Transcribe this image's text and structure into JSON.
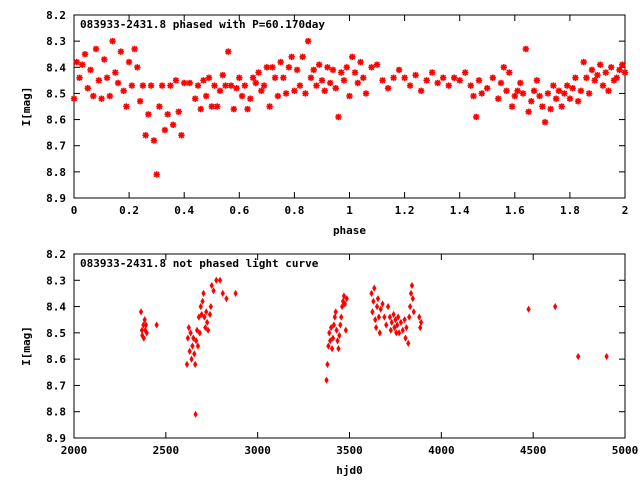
{
  "chart_data": [
    {
      "type": "scatter",
      "title": "083933-2431.8 phased with P=60.170day",
      "xlabel": "phase",
      "ylabel": "I[mag]",
      "xlim": [
        0,
        2
      ],
      "ylim": [
        8.2,
        8.9
      ],
      "y_inverted": true,
      "grid": false,
      "color": "#ff0000",
      "marker": "asterisk",
      "xticks": [
        0,
        0.2,
        0.4,
        0.6,
        0.8,
        1,
        1.2,
        1.4,
        1.6,
        1.8,
        2
      ],
      "xtick_labels": [
        "0",
        "0.2",
        "0.4",
        "0.6",
        "0.8",
        "1",
        "1.2",
        "1.4",
        "1.6",
        "1.8",
        "2"
      ],
      "yticks": [
        8.2,
        8.3,
        8.4,
        8.5,
        8.6,
        8.7,
        8.8,
        8.9
      ],
      "ytick_labels": [
        "8.2",
        "8.3",
        "8.4",
        "8.5",
        "8.6",
        "8.7",
        "8.8",
        "8.9"
      ],
      "points": [
        [
          0.0,
          8.52
        ],
        [
          0.01,
          8.38
        ],
        [
          0.02,
          8.44
        ],
        [
          0.03,
          8.39
        ],
        [
          0.04,
          8.35
        ],
        [
          0.05,
          8.48
        ],
        [
          0.06,
          8.41
        ],
        [
          0.07,
          8.51
        ],
        [
          0.08,
          8.33
        ],
        [
          0.09,
          8.45
        ],
        [
          0.1,
          8.52
        ],
        [
          0.11,
          8.37
        ],
        [
          0.12,
          8.44
        ],
        [
          0.13,
          8.51
        ],
        [
          0.14,
          8.3
        ],
        [
          0.15,
          8.42
        ],
        [
          0.16,
          8.46
        ],
        [
          0.17,
          8.34
        ],
        [
          0.18,
          8.49
        ],
        [
          0.19,
          8.55
        ],
        [
          0.2,
          8.38
        ],
        [
          0.21,
          8.47
        ],
        [
          0.22,
          8.33
        ],
        [
          0.23,
          8.4
        ],
        [
          0.24,
          8.53
        ],
        [
          0.25,
          8.47
        ],
        [
          0.26,
          8.66
        ],
        [
          0.27,
          8.58
        ],
        [
          0.28,
          8.47
        ],
        [
          0.29,
          8.68
        ],
        [
          0.3,
          8.81
        ],
        [
          0.31,
          8.55
        ],
        [
          0.32,
          8.47
        ],
        [
          0.33,
          8.64
        ],
        [
          0.34,
          8.58
        ],
        [
          0.35,
          8.47
        ],
        [
          0.36,
          8.62
        ],
        [
          0.37,
          8.45
        ],
        [
          0.38,
          8.57
        ],
        [
          0.39,
          8.66
        ],
        [
          0.4,
          8.46
        ],
        [
          0.42,
          8.46
        ],
        [
          0.44,
          8.52
        ],
        [
          0.45,
          8.47
        ],
        [
          0.46,
          8.56
        ],
        [
          0.47,
          8.45
        ],
        [
          0.48,
          8.51
        ],
        [
          0.49,
          8.44
        ],
        [
          0.5,
          8.55
        ],
        [
          0.51,
          8.47
        ],
        [
          0.52,
          8.55
        ],
        [
          0.53,
          8.49
        ],
        [
          0.54,
          8.43
        ],
        [
          0.55,
          8.47
        ],
        [
          0.56,
          8.34
        ],
        [
          0.57,
          8.47
        ],
        [
          0.58,
          8.56
        ],
        [
          0.59,
          8.48
        ],
        [
          0.6,
          8.44
        ],
        [
          0.61,
          8.51
        ],
        [
          0.62,
          8.47
        ],
        [
          0.63,
          8.56
        ],
        [
          0.64,
          8.52
        ],
        [
          0.65,
          8.44
        ],
        [
          0.66,
          8.46
        ],
        [
          0.67,
          8.42
        ],
        [
          0.68,
          8.49
        ],
        [
          0.69,
          8.47
        ],
        [
          0.7,
          8.4
        ],
        [
          0.71,
          8.55
        ],
        [
          0.72,
          8.4
        ],
        [
          0.73,
          8.44
        ],
        [
          0.74,
          8.51
        ],
        [
          0.75,
          8.38
        ],
        [
          0.76,
          8.44
        ],
        [
          0.77,
          8.5
        ],
        [
          0.78,
          8.4
        ],
        [
          0.79,
          8.36
        ],
        [
          0.8,
          8.49
        ],
        [
          0.81,
          8.41
        ],
        [
          0.82,
          8.47
        ],
        [
          0.83,
          8.36
        ],
        [
          0.84,
          8.5
        ],
        [
          0.85,
          8.3
        ],
        [
          0.86,
          8.44
        ],
        [
          0.87,
          8.41
        ],
        [
          0.88,
          8.47
        ],
        [
          0.89,
          8.39
        ],
        [
          0.9,
          8.45
        ],
        [
          0.91,
          8.49
        ],
        [
          0.92,
          8.4
        ],
        [
          0.93,
          8.46
        ],
        [
          0.94,
          8.41
        ],
        [
          0.95,
          8.48
        ],
        [
          0.96,
          8.59
        ],
        [
          0.97,
          8.42
        ],
        [
          0.98,
          8.45
        ],
        [
          0.99,
          8.4
        ],
        [
          1.0,
          8.51
        ],
        [
          1.01,
          8.36
        ],
        [
          1.02,
          8.42
        ],
        [
          1.03,
          8.46
        ],
        [
          1.04,
          8.38
        ],
        [
          1.05,
          8.44
        ],
        [
          1.06,
          8.5
        ],
        [
          1.08,
          8.4
        ],
        [
          1.1,
          8.39
        ],
        [
          1.12,
          8.45
        ],
        [
          1.14,
          8.48
        ],
        [
          1.16,
          8.44
        ],
        [
          1.18,
          8.41
        ],
        [
          1.2,
          8.44
        ],
        [
          1.22,
          8.47
        ],
        [
          1.24,
          8.43
        ],
        [
          1.26,
          8.49
        ],
        [
          1.28,
          8.45
        ],
        [
          1.3,
          8.42
        ],
        [
          1.32,
          8.46
        ],
        [
          1.34,
          8.44
        ],
        [
          1.36,
          8.47
        ],
        [
          1.38,
          8.44
        ],
        [
          1.4,
          8.45
        ],
        [
          1.42,
          8.42
        ],
        [
          1.44,
          8.47
        ],
        [
          1.45,
          8.51
        ],
        [
          1.46,
          8.59
        ],
        [
          1.47,
          8.45
        ],
        [
          1.48,
          8.5
        ],
        [
          1.5,
          8.48
        ],
        [
          1.52,
          8.44
        ],
        [
          1.54,
          8.52
        ],
        [
          1.55,
          8.46
        ],
        [
          1.56,
          8.4
        ],
        [
          1.57,
          8.49
        ],
        [
          1.58,
          8.42
        ],
        [
          1.59,
          8.55
        ],
        [
          1.6,
          8.51
        ],
        [
          1.61,
          8.49
        ],
        [
          1.62,
          8.46
        ],
        [
          1.63,
          8.5
        ],
        [
          1.64,
          8.33
        ],
        [
          1.65,
          8.57
        ],
        [
          1.66,
          8.53
        ],
        [
          1.67,
          8.49
        ],
        [
          1.68,
          8.45
        ],
        [
          1.69,
          8.51
        ],
        [
          1.7,
          8.55
        ],
        [
          1.71,
          8.61
        ],
        [
          1.72,
          8.5
        ],
        [
          1.73,
          8.56
        ],
        [
          1.74,
          8.47
        ],
        [
          1.75,
          8.52
        ],
        [
          1.76,
          8.49
        ],
        [
          1.77,
          8.55
        ],
        [
          1.78,
          8.5
        ],
        [
          1.79,
          8.47
        ],
        [
          1.8,
          8.52
        ],
        [
          1.81,
          8.48
        ],
        [
          1.82,
          8.44
        ],
        [
          1.83,
          8.53
        ],
        [
          1.84,
          8.49
        ],
        [
          1.85,
          8.38
        ],
        [
          1.86,
          8.44
        ],
        [
          1.87,
          8.5
        ],
        [
          1.88,
          8.41
        ],
        [
          1.89,
          8.45
        ],
        [
          1.9,
          8.43
        ],
        [
          1.91,
          8.39
        ],
        [
          1.92,
          8.47
        ],
        [
          1.93,
          8.42
        ],
        [
          1.94,
          8.49
        ],
        [
          1.95,
          8.4
        ],
        [
          1.96,
          8.45
        ],
        [
          1.97,
          8.44
        ],
        [
          1.98,
          8.41
        ],
        [
          1.99,
          8.39
        ],
        [
          2.0,
          8.42
        ]
      ]
    },
    {
      "type": "scatter",
      "title": "083933-2431.8 not phased light curve",
      "xlabel": "hjd0",
      "ylabel": "I[mag]",
      "xlim": [
        2000,
        5000
      ],
      "ylim": [
        8.2,
        8.9
      ],
      "y_inverted": true,
      "grid": false,
      "color": "#ff0000",
      "marker": "diamond",
      "xticks": [
        2000,
        2500,
        3000,
        3500,
        4000,
        4500,
        5000
      ],
      "xtick_labels": [
        "2000",
        "2500",
        "3000",
        "3500",
        "4000",
        "4500",
        "5000"
      ],
      "yticks": [
        8.2,
        8.3,
        8.4,
        8.5,
        8.6,
        8.7,
        8.8,
        8.9
      ],
      "ytick_labels": [
        "8.2",
        "8.3",
        "8.4",
        "8.5",
        "8.6",
        "8.7",
        "8.8",
        "8.9"
      ],
      "points": [
        [
          2365,
          8.42
        ],
        [
          2370,
          8.49
        ],
        [
          2372,
          8.51
        ],
        [
          2378,
          8.47
        ],
        [
          2380,
          8.52
        ],
        [
          2385,
          8.45
        ],
        [
          2388,
          8.49
        ],
        [
          2392,
          8.47
        ],
        [
          2396,
          8.5
        ],
        [
          2450,
          8.47
        ],
        [
          2615,
          8.62
        ],
        [
          2620,
          8.52
        ],
        [
          2625,
          8.48
        ],
        [
          2630,
          8.57
        ],
        [
          2635,
          8.5
        ],
        [
          2640,
          8.6
        ],
        [
          2645,
          8.55
        ],
        [
          2650,
          8.52
        ],
        [
          2655,
          8.58
        ],
        [
          2660,
          8.62
        ],
        [
          2662,
          8.81
        ],
        [
          2665,
          8.53
        ],
        [
          2670,
          8.49
        ],
        [
          2675,
          8.55
        ],
        [
          2680,
          8.44
        ],
        [
          2685,
          8.5
        ],
        [
          2690,
          8.4
        ],
        [
          2695,
          8.43
        ],
        [
          2700,
          8.38
        ],
        [
          2705,
          8.35
        ],
        [
          2710,
          8.44
        ],
        [
          2715,
          8.48
        ],
        [
          2720,
          8.42
        ],
        [
          2725,
          8.46
        ],
        [
          2730,
          8.49
        ],
        [
          2740,
          8.43
        ],
        [
          2745,
          8.4
        ],
        [
          2750,
          8.32
        ],
        [
          2760,
          8.34
        ],
        [
          2775,
          8.3
        ],
        [
          2795,
          8.3
        ],
        [
          2810,
          8.35
        ],
        [
          2830,
          8.37
        ],
        [
          2880,
          8.35
        ],
        [
          3375,
          8.68
        ],
        [
          3380,
          8.62
        ],
        [
          3385,
          8.55
        ],
        [
          3390,
          8.5
        ],
        [
          3395,
          8.53
        ],
        [
          3400,
          8.48
        ],
        [
          3405,
          8.56
        ],
        [
          3410,
          8.52
        ],
        [
          3415,
          8.47
        ],
        [
          3420,
          8.44
        ],
        [
          3425,
          8.42
        ],
        [
          3430,
          8.49
        ],
        [
          3435,
          8.53
        ],
        [
          3440,
          8.56
        ],
        [
          3445,
          8.51
        ],
        [
          3450,
          8.47
        ],
        [
          3455,
          8.44
        ],
        [
          3460,
          8.4
        ],
        [
          3465,
          8.38
        ],
        [
          3470,
          8.36
        ],
        [
          3475,
          8.39
        ],
        [
          3480,
          8.49
        ],
        [
          3485,
          8.37
        ],
        [
          3620,
          8.35
        ],
        [
          3625,
          8.42
        ],
        [
          3630,
          8.38
        ],
        [
          3635,
          8.33
        ],
        [
          3640,
          8.45
        ],
        [
          3645,
          8.48
        ],
        [
          3650,
          8.4
        ],
        [
          3655,
          8.37
        ],
        [
          3660,
          8.44
        ],
        [
          3665,
          8.5
        ],
        [
          3670,
          8.41
        ],
        [
          3680,
          8.39
        ],
        [
          3690,
          8.44
        ],
        [
          3700,
          8.47
        ],
        [
          3710,
          8.4
        ],
        [
          3720,
          8.44
        ],
        [
          3725,
          8.49
        ],
        [
          3730,
          8.46
        ],
        [
          3740,
          8.43
        ],
        [
          3745,
          8.48
        ],
        [
          3750,
          8.45
        ],
        [
          3755,
          8.5
        ],
        [
          3760,
          8.47
        ],
        [
          3765,
          8.44
        ],
        [
          3770,
          8.5
        ],
        [
          3780,
          8.46
        ],
        [
          3790,
          8.49
        ],
        [
          3800,
          8.45
        ],
        [
          3805,
          8.52
        ],
        [
          3810,
          8.48
        ],
        [
          3820,
          8.54
        ],
        [
          3825,
          8.44
        ],
        [
          3830,
          8.4
        ],
        [
          3835,
          8.35
        ],
        [
          3840,
          8.32
        ],
        [
          3845,
          8.37
        ],
        [
          3850,
          8.42
        ],
        [
          3880,
          8.44
        ],
        [
          3885,
          8.48
        ],
        [
          3890,
          8.46
        ],
        [
          4475,
          8.41
        ],
        [
          4620,
          8.4
        ],
        [
          4745,
          8.59
        ],
        [
          4900,
          8.59
        ]
      ]
    }
  ]
}
